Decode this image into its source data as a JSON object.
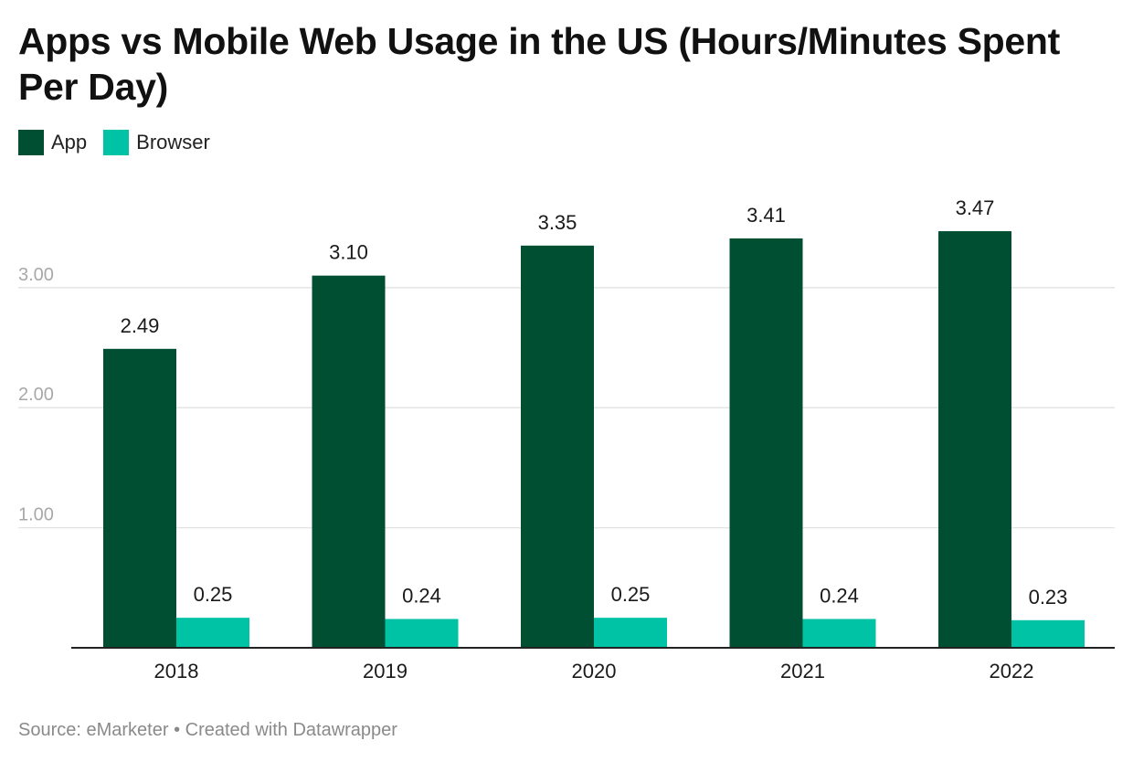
{
  "chart_data": {
    "type": "bar",
    "title": "Apps vs Mobile Web Usage in the US (Hours/Minutes Spent Per Day)",
    "categories": [
      "2018",
      "2019",
      "2020",
      "2021",
      "2022"
    ],
    "series": [
      {
        "name": "App",
        "color": "#014f33",
        "values": [
          2.49,
          3.1,
          3.35,
          3.41,
          3.47
        ]
      },
      {
        "name": "Browser",
        "color": "#00c3a6",
        "values": [
          0.25,
          0.24,
          0.25,
          0.24,
          0.23
        ]
      }
    ],
    "yticks": [
      "1.00",
      "2.00",
      "3.00"
    ],
    "ylim": [
      0,
      3.6
    ],
    "grid": true,
    "legend_position": "top-left",
    "source": "Source: eMarketer • Created with Datawrapper"
  }
}
